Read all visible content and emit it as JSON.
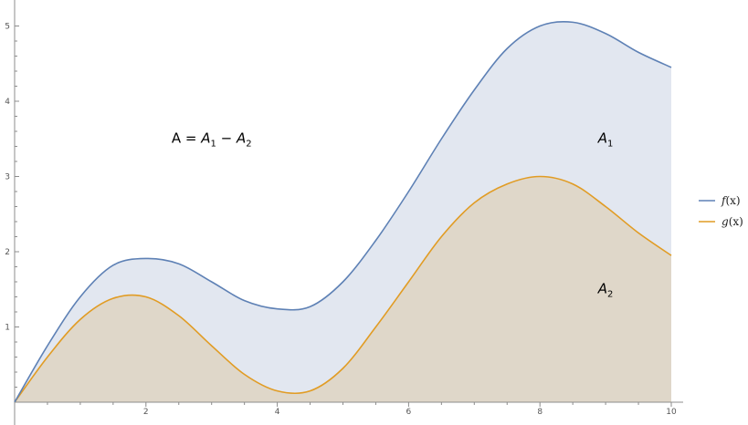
{
  "colors": {
    "f_line": "#5E81B5",
    "g_line": "#E19C24",
    "fill_A1": "#E2E7F0",
    "fill_A2": "#DFD7C9",
    "axis": "#8C8C8C"
  },
  "chart_data": {
    "type": "area",
    "xlim": [
      0,
      10
    ],
    "ylim": [
      0,
      5
    ],
    "x_ticks": [
      2,
      4,
      6,
      8,
      10
    ],
    "y_ticks": [
      1,
      2,
      3,
      4,
      5
    ],
    "grid": false,
    "legend_position": "right",
    "series": [
      {
        "name": "f(x)",
        "name_parts": {
          "letter": "f",
          "arg": "(x)"
        },
        "color": "#5E81B5",
        "x": [
          0,
          0.5,
          1.0,
          1.5,
          2.0,
          2.5,
          3.0,
          3.5,
          4.0,
          4.5,
          5.0,
          5.5,
          6.0,
          6.5,
          7.0,
          7.5,
          8.0,
          8.5,
          9.0,
          9.5,
          10.0
        ],
        "y": [
          0,
          0.75,
          1.4,
          1.82,
          1.91,
          1.84,
          1.6,
          1.35,
          1.24,
          1.27,
          1.6,
          2.15,
          2.8,
          3.5,
          4.15,
          4.7,
          5.0,
          5.05,
          4.9,
          4.65,
          4.45
        ]
      },
      {
        "name": "g(x)",
        "name_parts": {
          "letter": "g",
          "arg": "(x)"
        },
        "color": "#E19C24",
        "x": [
          0,
          0.5,
          1.0,
          1.5,
          2.0,
          2.5,
          3.0,
          3.5,
          4.0,
          4.5,
          5.0,
          5.5,
          6.0,
          6.5,
          7.0,
          7.5,
          8.0,
          8.5,
          9.0,
          9.5,
          10.0
        ],
        "y": [
          0,
          0.6,
          1.1,
          1.38,
          1.4,
          1.15,
          0.75,
          0.37,
          0.15,
          0.15,
          0.45,
          1.0,
          1.6,
          2.2,
          2.65,
          2.9,
          3.0,
          2.9,
          2.6,
          2.25,
          1.95
        ]
      }
    ],
    "annotations": [
      {
        "id": "formula",
        "x": 3.0,
        "y": 3.45,
        "parts": [
          {
            "text": "A = ",
            "italic": false,
            "sub": false
          },
          {
            "text": "A",
            "italic": true,
            "sub": false
          },
          {
            "text": "1",
            "italic": false,
            "sub": true
          },
          {
            "text": " − ",
            "italic": false,
            "sub": false
          },
          {
            "text": "A",
            "italic": true,
            "sub": false
          },
          {
            "text": "2",
            "italic": false,
            "sub": true
          }
        ]
      },
      {
        "id": "a1-label",
        "x": 9.0,
        "y": 3.45,
        "parts": [
          {
            "text": "A",
            "italic": true,
            "sub": false
          },
          {
            "text": "1",
            "italic": false,
            "sub": true
          }
        ]
      },
      {
        "id": "a2-label",
        "x": 9.0,
        "y": 1.45,
        "parts": [
          {
            "text": "A",
            "italic": true,
            "sub": false
          },
          {
            "text": "2",
            "italic": false,
            "sub": true
          }
        ]
      }
    ]
  }
}
